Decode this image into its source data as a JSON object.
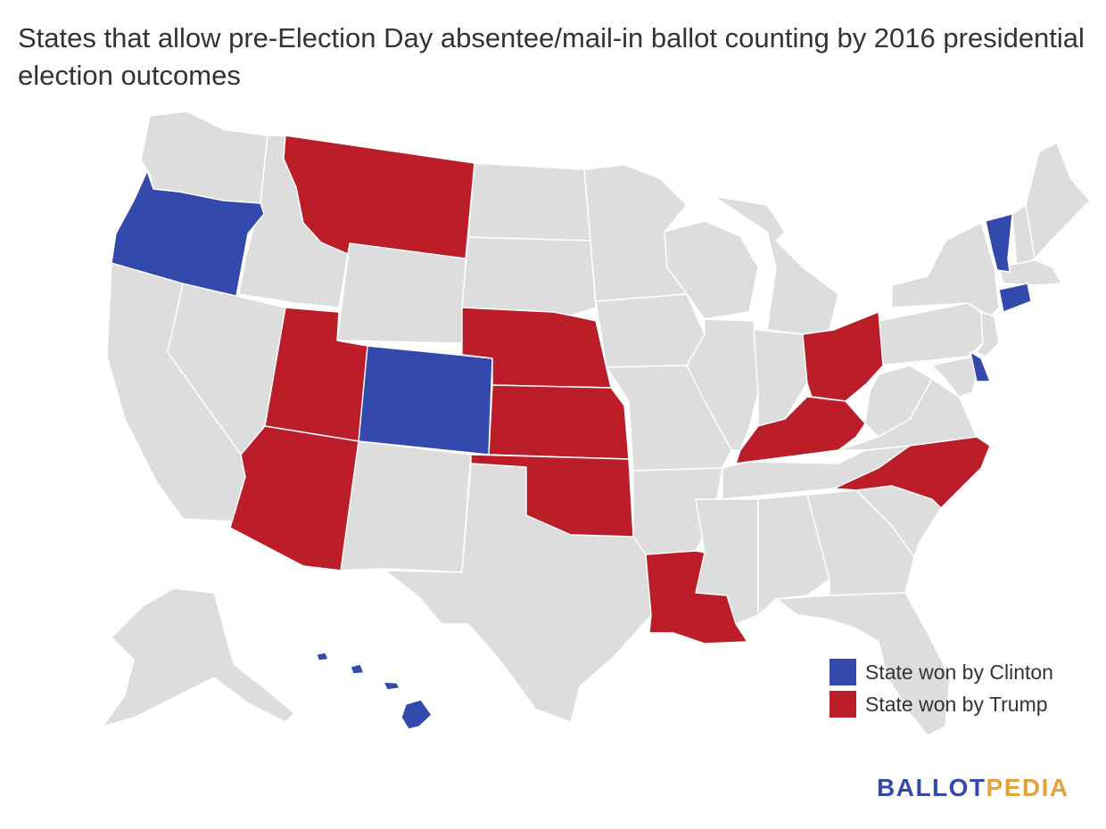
{
  "title": "States that allow pre-Election Day absentee/mail-in ballot counting by 2016 presidential election outcomes",
  "colors": {
    "clinton": "#3349ab",
    "trump": "#bb1e29",
    "other": "#dddddd",
    "border": "#ffffff"
  },
  "legend": [
    {
      "label": "State won by Clinton",
      "color": "#3349ab"
    },
    {
      "label": "State won by Trump",
      "color": "#bb1e29"
    }
  ],
  "states_highlighted": {
    "clinton": [
      "Oregon",
      "Colorado",
      "Vermont",
      "Connecticut",
      "Delaware",
      "Hawaii"
    ],
    "trump": [
      "Montana",
      "Utah",
      "Arizona",
      "Nebraska",
      "Kansas",
      "Oklahoma",
      "Louisiana",
      "Ohio",
      "Kentucky",
      "North Carolina"
    ]
  },
  "logo": {
    "part1": "BALLOT",
    "part2": "PEDIA"
  }
}
